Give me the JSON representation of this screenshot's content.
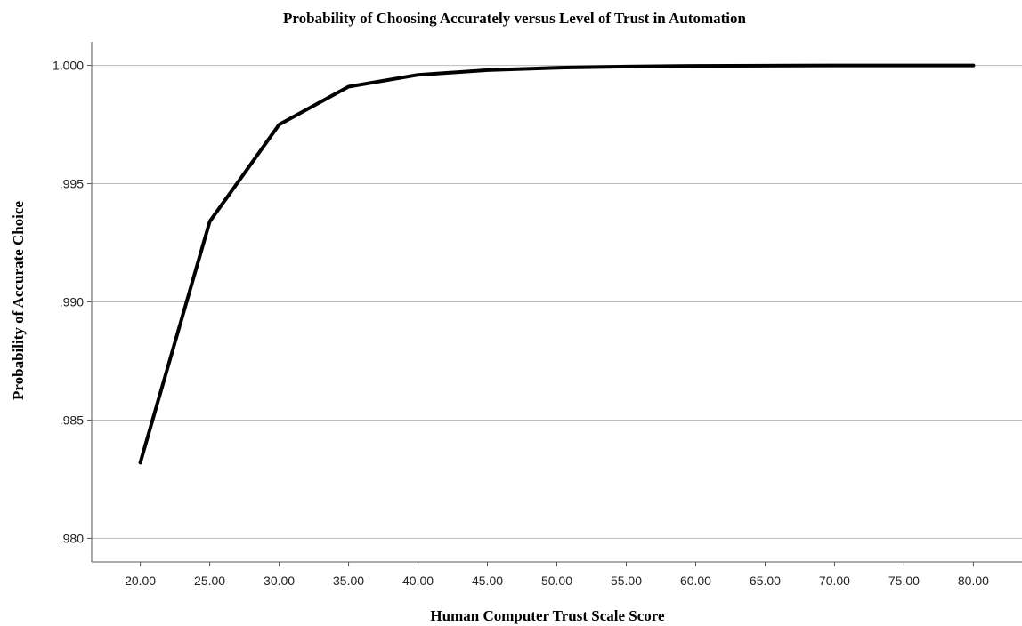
{
  "chart_data": {
    "type": "line",
    "title": "Probability of Choosing Accurately versus Level of Trust in Automation",
    "xlabel": "Human Computer Trust Scale Score",
    "ylabel": "Probability of Accurate Choice",
    "xlim": [
      16.5,
      83.5
    ],
    "ylim": [
      0.979,
      1.001
    ],
    "x_ticks": [
      20,
      25,
      30,
      35,
      40,
      45,
      50,
      55,
      60,
      65,
      70,
      75,
      80
    ],
    "x_tick_labels": [
      "20.00",
      "25.00",
      "30.00",
      "35.00",
      "40.00",
      "45.00",
      "50.00",
      "55.00",
      "60.00",
      "65.00",
      "70.00",
      "75.00",
      "80.00"
    ],
    "y_ticks": [
      0.98,
      0.985,
      0.99,
      0.995,
      1.0
    ],
    "y_tick_labels": [
      ".980",
      ".985",
      ".990",
      ".995",
      "1.000"
    ],
    "grid": "horizontal",
    "series": [
      {
        "color": "#000000",
        "x": [
          20,
          25,
          30,
          35,
          40,
          45,
          50,
          55,
          60,
          65,
          70,
          75,
          80
        ],
        "y": [
          0.9832,
          0.9934,
          0.9975,
          0.9991,
          0.9996,
          0.9998,
          0.9999,
          0.99995,
          0.99998,
          0.99999,
          1.0,
          1.0,
          1.0
        ]
      }
    ]
  }
}
